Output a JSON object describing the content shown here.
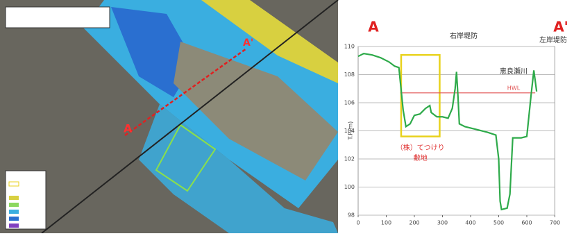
{
  "map": {
    "labels": [
      "A",
      "A'"
    ]
  },
  "chart_data": {
    "type": "line",
    "labels": {
      "left_point": "A",
      "right_point": "A'",
      "right_bank": "右岸堤防",
      "left_bank": "左岸堤防",
      "river": "恵良瀬川",
      "y_axis": "T.P.(m)"
    },
    "x": [
      0,
      20,
      50,
      80,
      110,
      130,
      145,
      150,
      160,
      170,
      185,
      200,
      220,
      240,
      255,
      260,
      280,
      300,
      320,
      335,
      345,
      350,
      355,
      360,
      380,
      420,
      460,
      490,
      500,
      505,
      510,
      530,
      540,
      550,
      580,
      600,
      615,
      625,
      635
    ],
    "series": [
      {
        "color": "#2eaa4a",
        "values": [
          109.3,
          109.5,
          109.4,
          109.2,
          108.9,
          108.6,
          108.5,
          107.5,
          105.5,
          104.3,
          104.5,
          105.1,
          105.2,
          105.6,
          105.8,
          105.3,
          105.0,
          105.0,
          104.9,
          105.6,
          107.0,
          108.2,
          106.5,
          104.5,
          104.3,
          104.1,
          103.9,
          103.7,
          102.0,
          99.0,
          98.4,
          98.5,
          99.5,
          103.5,
          103.5,
          103.6,
          106.5,
          108.3,
          106.8
        ]
      }
    ],
    "hwl": {
      "label": "HWL",
      "value": 106.7,
      "x": [
        150,
        630
      ],
      "color": "#e05050"
    },
    "highlight": {
      "x": [
        153,
        290
      ],
      "y": [
        103.6,
        109.4
      ],
      "color": "#e8d21c",
      "lines": [
        "（株）てつけり",
        "敷地"
      ]
    },
    "xlim": [
      0,
      700
    ],
    "xticks": [
      0,
      100,
      200,
      300,
      400,
      500,
      600,
      700
    ],
    "ylim": [
      98,
      110
    ],
    "yticks": [
      98,
      100,
      102,
      104,
      106,
      108,
      110
    ],
    "grid": true
  }
}
